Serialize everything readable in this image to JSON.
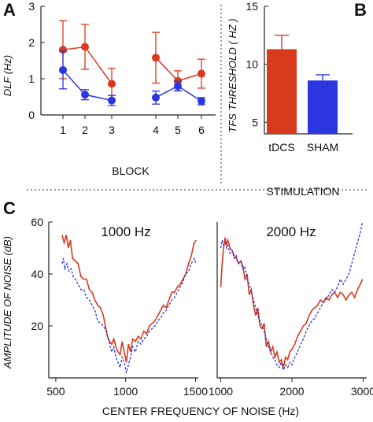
{
  "colors": {
    "red": "#d93a1e",
    "blue": "#2b36e0",
    "axis": "#222222"
  },
  "chart_data": [
    {
      "panel": "A",
      "type": "line",
      "ylabel": "DLF  (Hz)",
      "xlabel": "BLOCK",
      "ylim": [
        0,
        3
      ],
      "yticks": [
        "0",
        "1",
        "2",
        "3"
      ],
      "xticks": [
        "1",
        "2",
        "3",
        "4",
        "5",
        "6"
      ],
      "x": [
        1,
        2,
        3,
        4,
        5,
        6
      ],
      "segments": [
        [
          0,
          3
        ],
        [
          3,
          6
        ]
      ],
      "series": [
        {
          "color": "red",
          "values": [
            1.8,
            1.88,
            0.86,
            1.58,
            0.94,
            1.14
          ],
          "err": [
            0.8,
            0.62,
            0.43,
            0.7,
            0.28,
            0.4
          ]
        },
        {
          "color": "blue",
          "values": [
            1.24,
            0.56,
            0.4,
            0.48,
            0.8,
            0.38
          ],
          "err": [
            0.52,
            0.14,
            0.14,
            0.18,
            0.13,
            0.1
          ]
        }
      ]
    },
    {
      "panel": "B",
      "type": "bar",
      "ylabel": "TFS THRESHOLD  ( HZ )",
      "xlabel": "STIMULATION",
      "categories": [
        "tDCS",
        "SHAM"
      ],
      "values": [
        11.3,
        8.6
      ],
      "err": [
        1.2,
        0.5
      ],
      "bar_colors": [
        "red",
        "blue"
      ],
      "ylim": [
        4,
        15
      ],
      "yticks": [
        "5",
        "10",
        "15"
      ]
    },
    {
      "panel": "C",
      "type": "line",
      "title": "1000 Hz",
      "ylabel": "AMPLITUDE OF NOISE  (dB)",
      "xlim": [
        450,
        1520
      ],
      "xticks": [
        "500",
        "1000",
        "1500"
      ],
      "ylim": [
        0,
        60
      ],
      "yticks": [
        "20",
        "40",
        "60"
      ],
      "series": [
        {
          "color": "red",
          "style": "solid",
          "points": [
            [
              545,
              55
            ],
            [
              560,
              52
            ],
            [
              575,
              55
            ],
            [
              590,
              50
            ],
            [
              605,
              53
            ],
            [
              620,
              46
            ],
            [
              640,
              45
            ],
            [
              660,
              44
            ],
            [
              680,
              39
            ],
            [
              700,
              38
            ],
            [
              720,
              38
            ],
            [
              740,
              34
            ],
            [
              760,
              33
            ],
            [
              780,
              30
            ],
            [
              800,
              28
            ],
            [
              820,
              27
            ],
            [
              840,
              24
            ],
            [
              855,
              20
            ],
            [
              870,
              16
            ],
            [
              885,
              14
            ],
            [
              900,
              13
            ],
            [
              915,
              15
            ],
            [
              930,
              12
            ],
            [
              945,
              10
            ],
            [
              960,
              9
            ],
            [
              975,
              14
            ],
            [
              990,
              10
            ],
            [
              1005,
              6
            ],
            [
              1020,
              13
            ],
            [
              1035,
              10
            ],
            [
              1050,
              15
            ],
            [
              1070,
              14
            ],
            [
              1090,
              16
            ],
            [
              1110,
              15
            ],
            [
              1130,
              18
            ],
            [
              1150,
              17
            ],
            [
              1170,
              20
            ],
            [
              1190,
              21
            ],
            [
              1210,
              22
            ],
            [
              1230,
              24
            ],
            [
              1250,
              26
            ],
            [
              1270,
              28
            ],
            [
              1290,
              27
            ],
            [
              1310,
              30
            ],
            [
              1330,
              33
            ],
            [
              1350,
              33
            ],
            [
              1370,
              35
            ],
            [
              1390,
              36
            ],
            [
              1410,
              38
            ],
            [
              1430,
              40
            ],
            [
              1450,
              44
            ],
            [
              1470,
              47
            ],
            [
              1490,
              52
            ],
            [
              1505,
              53
            ]
          ]
        },
        {
          "color": "blue",
          "style": "dashed",
          "points": [
            [
              545,
              44
            ],
            [
              555,
              46
            ],
            [
              565,
              42
            ],
            [
              580,
              44
            ],
            [
              595,
              41
            ],
            [
              610,
              42
            ],
            [
              625,
              39
            ],
            [
              640,
              38
            ],
            [
              660,
              36
            ],
            [
              680,
              34
            ],
            [
              700,
              34
            ],
            [
              720,
              31
            ],
            [
              740,
              30
            ],
            [
              760,
              28
            ],
            [
              780,
              26
            ],
            [
              800,
              22
            ],
            [
              820,
              21
            ],
            [
              840,
              20
            ],
            [
              860,
              18
            ],
            [
              880,
              14
            ],
            [
              900,
              10
            ],
            [
              915,
              12
            ],
            [
              930,
              8
            ],
            [
              945,
              6
            ],
            [
              960,
              4
            ],
            [
              975,
              8
            ],
            [
              990,
              6
            ],
            [
              1005,
              2
            ],
            [
              1020,
              5
            ],
            [
              1035,
              8
            ],
            [
              1050,
              12
            ],
            [
              1070,
              10
            ],
            [
              1090,
              14
            ],
            [
              1110,
              13
            ],
            [
              1130,
              15
            ],
            [
              1150,
              16
            ],
            [
              1170,
              18
            ],
            [
              1190,
              19
            ],
            [
              1210,
              20
            ],
            [
              1230,
              22
            ],
            [
              1250,
              23
            ],
            [
              1270,
              25
            ],
            [
              1290,
              26
            ],
            [
              1310,
              28
            ],
            [
              1330,
              30
            ],
            [
              1350,
              31
            ],
            [
              1370,
              33
            ],
            [
              1390,
              35
            ],
            [
              1410,
              37
            ],
            [
              1430,
              40
            ],
            [
              1450,
              41
            ],
            [
              1470,
              44
            ],
            [
              1490,
              46
            ],
            [
              1505,
              44
            ]
          ]
        }
      ]
    },
    {
      "panel": "C2",
      "type": "line",
      "title": "2000 Hz",
      "xlim": [
        950,
        3050
      ],
      "xticks": [
        "1000",
        "2000",
        "3000"
      ],
      "ylim": [
        0,
        60
      ],
      "series": [
        {
          "color": "red",
          "style": "solid",
          "points": [
            [
              1000,
              35
            ],
            [
              1020,
              44
            ],
            [
              1040,
              50
            ],
            [
              1060,
              54
            ],
            [
              1080,
              51
            ],
            [
              1100,
              53
            ],
            [
              1130,
              50
            ],
            [
              1160,
              49
            ],
            [
              1190,
              47
            ],
            [
              1220,
              46
            ],
            [
              1250,
              44
            ],
            [
              1280,
              45
            ],
            [
              1310,
              43
            ],
            [
              1340,
              38
            ],
            [
              1370,
              40
            ],
            [
              1400,
              32
            ],
            [
              1430,
              34
            ],
            [
              1460,
              28
            ],
            [
              1490,
              24
            ],
            [
              1520,
              27
            ],
            [
              1550,
              20
            ],
            [
              1580,
              19
            ],
            [
              1610,
              21
            ],
            [
              1640,
              12
            ],
            [
              1670,
              14
            ],
            [
              1700,
              10
            ],
            [
              1730,
              12
            ],
            [
              1760,
              8
            ],
            [
              1790,
              10
            ],
            [
              1820,
              6
            ],
            [
              1850,
              7
            ],
            [
              1880,
              4
            ],
            [
              1910,
              8
            ],
            [
              1940,
              7
            ],
            [
              1970,
              10
            ],
            [
              2000,
              11
            ],
            [
              2040,
              13
            ],
            [
              2080,
              16
            ],
            [
              2120,
              18
            ],
            [
              2160,
              20
            ],
            [
              2200,
              21
            ],
            [
              2240,
              24
            ],
            [
              2280,
              26
            ],
            [
              2320,
              27
            ],
            [
              2360,
              28
            ],
            [
              2400,
              30
            ],
            [
              2440,
              29
            ],
            [
              2480,
              31
            ],
            [
              2520,
              30
            ],
            [
              2560,
              32
            ],
            [
              2600,
              33
            ],
            [
              2640,
              31
            ],
            [
              2680,
              33
            ],
            [
              2720,
              32
            ],
            [
              2760,
              30
            ],
            [
              2800,
              32
            ],
            [
              2840,
              33
            ],
            [
              2880,
              31
            ],
            [
              2920,
              34
            ],
            [
              2960,
              36
            ],
            [
              2990,
              38
            ]
          ]
        },
        {
          "color": "blue",
          "style": "dashed",
          "points": [
            [
              1000,
              50
            ],
            [
              1020,
              53
            ],
            [
              1040,
              51
            ],
            [
              1060,
              52
            ],
            [
              1080,
              50
            ],
            [
              1100,
              51
            ],
            [
              1130,
              48
            ],
            [
              1160,
              49
            ],
            [
              1190,
              46
            ],
            [
              1220,
              47
            ],
            [
              1250,
              44
            ],
            [
              1280,
              45
            ],
            [
              1310,
              42
            ],
            [
              1340,
              43
            ],
            [
              1370,
              38
            ],
            [
              1400,
              36
            ],
            [
              1430,
              33
            ],
            [
              1460,
              30
            ],
            [
              1490,
              27
            ],
            [
              1520,
              24
            ],
            [
              1550,
              22
            ],
            [
              1580,
              20
            ],
            [
              1610,
              18
            ],
            [
              1640,
              15
            ],
            [
              1670,
              12
            ],
            [
              1700,
              10
            ],
            [
              1730,
              8
            ],
            [
              1760,
              7
            ],
            [
              1790,
              5
            ],
            [
              1820,
              4
            ],
            [
              1850,
              6
            ],
            [
              1880,
              3
            ],
            [
              1910,
              5
            ],
            [
              1940,
              4
            ],
            [
              1970,
              6
            ],
            [
              2000,
              5
            ],
            [
              2040,
              8
            ],
            [
              2080,
              10
            ],
            [
              2120,
              13
            ],
            [
              2160,
              15
            ],
            [
              2200,
              18
            ],
            [
              2240,
              20
            ],
            [
              2280,
              22
            ],
            [
              2320,
              23
            ],
            [
              2360,
              25
            ],
            [
              2400,
              27
            ],
            [
              2440,
              29
            ],
            [
              2480,
              30
            ],
            [
              2520,
              32
            ],
            [
              2560,
              34
            ],
            [
              2600,
              33
            ],
            [
              2640,
              35
            ],
            [
              2680,
              38
            ],
            [
              2720,
              36
            ],
            [
              2760,
              38
            ],
            [
              2800,
              40
            ],
            [
              2840,
              44
            ],
            [
              2880,
              48
            ],
            [
              2920,
              52
            ],
            [
              2960,
              56
            ],
            [
              2990,
              60
            ]
          ]
        }
      ]
    }
  ],
  "labels": {
    "panel_a": "A",
    "panel_b": "B",
    "panel_c": "C",
    "c_xlabel": "CENTER  FREQUENCY  OF  NOISE   (Hz)"
  }
}
